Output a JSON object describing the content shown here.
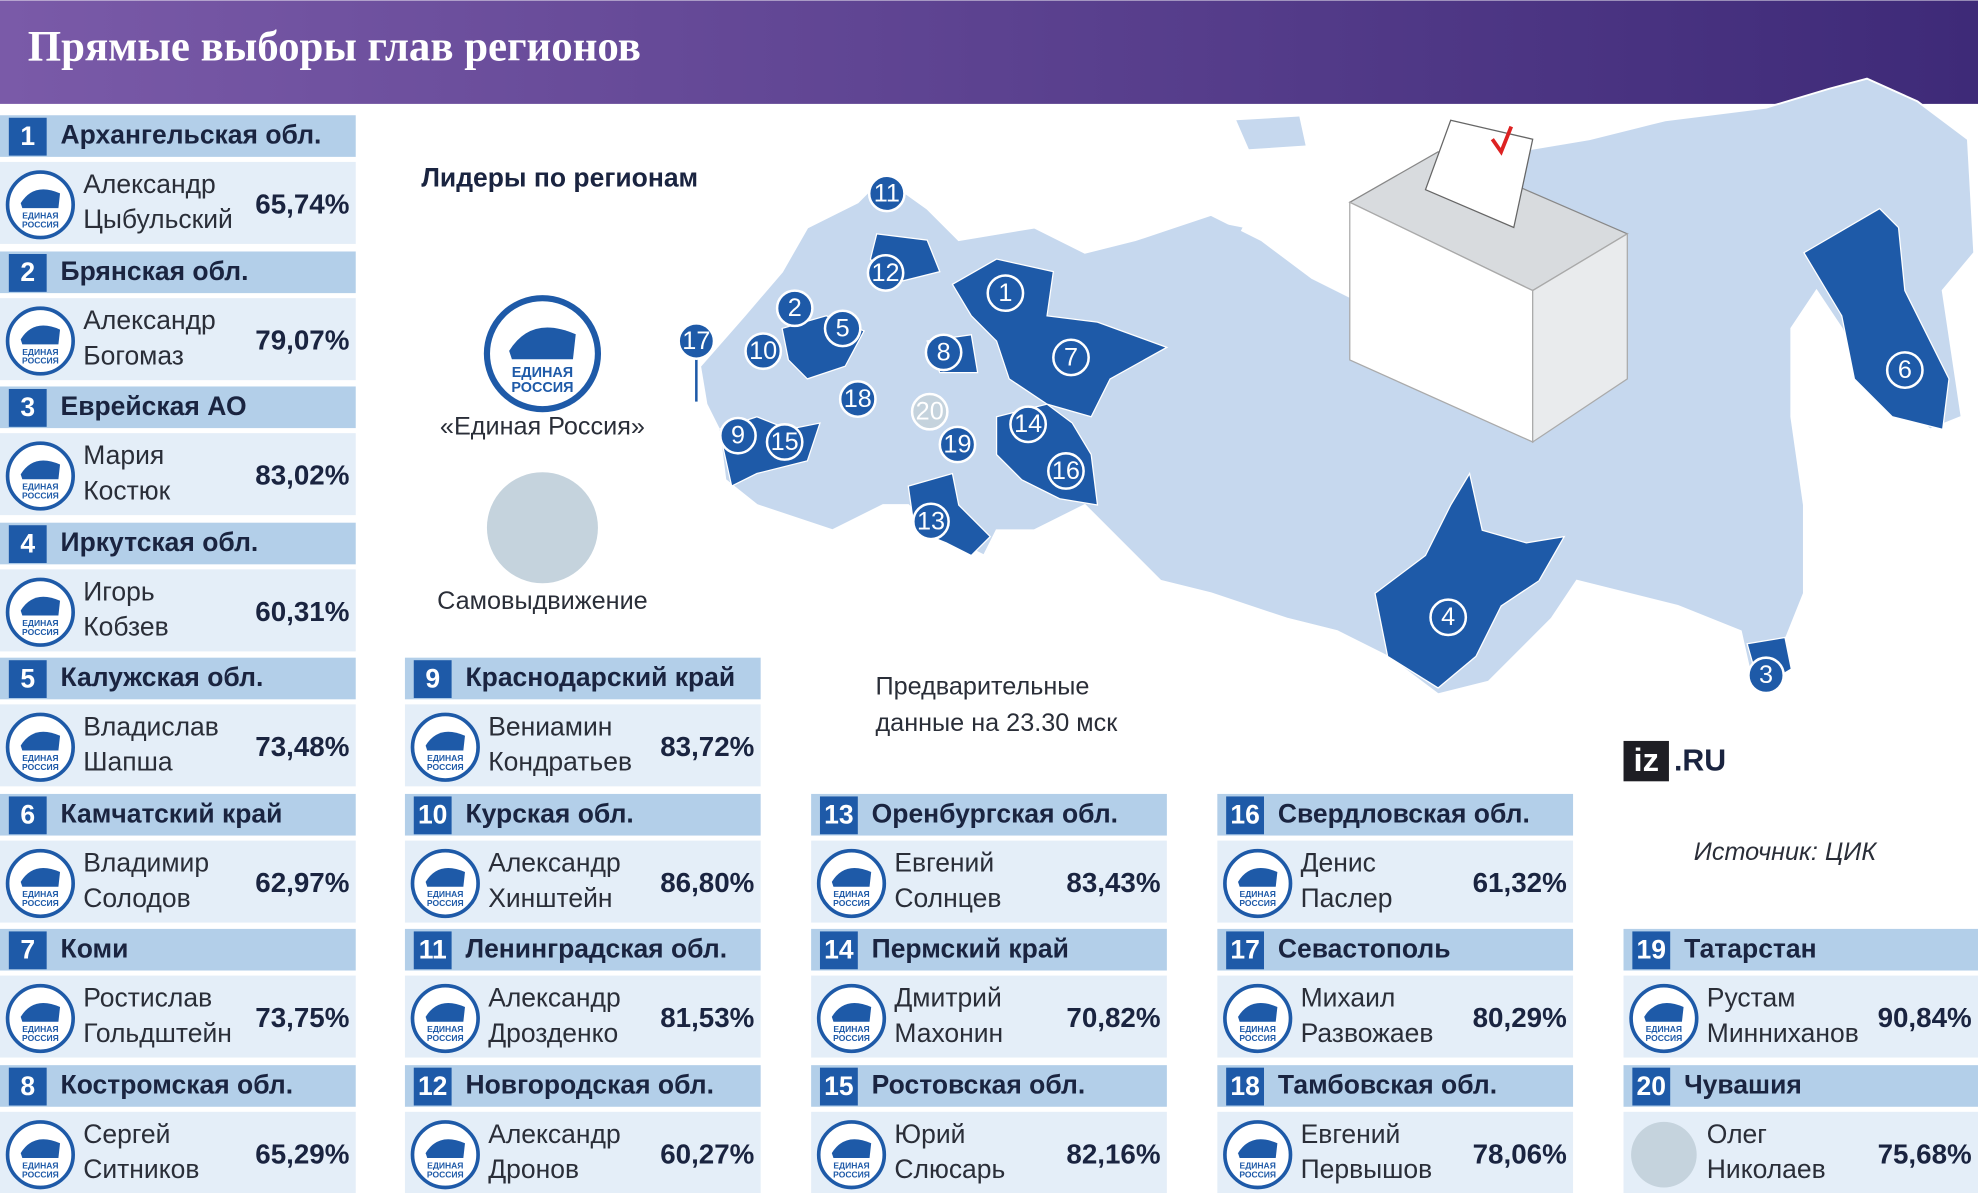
{
  "header": {
    "title": "Прямые выборы глав регионов"
  },
  "map": {
    "title": "Лидеры по регионам",
    "note": [
      "Предварительные",
      "данные на 23.30 мск"
    ]
  },
  "legend": {
    "items": [
      {
        "label": "«Единая Россия»",
        "color": "#1e5aa8",
        "logo_text": [
          "ЕДИНАЯ",
          "РОССИЯ"
        ]
      },
      {
        "label": "Самовыдвижение",
        "color": "#c5d3dd"
      }
    ]
  },
  "brand": {
    "logo": "iz",
    "domain": ".RU"
  },
  "source": "Источник: ЦИК",
  "regions": [
    {
      "number": "1",
      "name": "Архангельская обл.",
      "candidate": [
        "Александр",
        "Цыбульский"
      ],
      "result": "65,74%",
      "color": "#1e5aa8"
    },
    {
      "number": "2",
      "name": "Брянская обл.",
      "candidate": [
        "Александр",
        "Богомаз"
      ],
      "result": "79,07%",
      "color": "#1e5aa8"
    },
    {
      "number": "3",
      "name": "Еврейская АО",
      "candidate": [
        "Мария",
        "Костюк"
      ],
      "result": "83,02%",
      "color": "#1e5aa8"
    },
    {
      "number": "4",
      "name": "Иркутская обл.",
      "candidate": [
        "Игорь",
        "Кобзев"
      ],
      "result": "60,31%",
      "color": "#1e5aa8"
    },
    {
      "number": "5",
      "name": "Калужская обл.",
      "candidate": [
        "Владислав",
        "Шапша"
      ],
      "result": "73,48%",
      "color": "#1e5aa8"
    },
    {
      "number": "6",
      "name": "Камчатский край",
      "candidate": [
        "Владимир",
        "Солодов"
      ],
      "result": "62,97%",
      "color": "#1e5aa8"
    },
    {
      "number": "7",
      "name": "Коми",
      "candidate": [
        "Ростислав",
        "Гольдштейн"
      ],
      "result": "73,75%",
      "color": "#1e5aa8"
    },
    {
      "number": "8",
      "name": "Костромская обл.",
      "candidate": [
        "Сергей",
        "Ситников"
      ],
      "result": "65,29%",
      "color": "#1e5aa8"
    },
    {
      "number": "9",
      "name": "Краснодарский край",
      "candidate": [
        "Вениамин",
        "Кондратьев"
      ],
      "result": "83,72%",
      "color": "#1e5aa8"
    },
    {
      "number": "10",
      "name": "Курская обл.",
      "candidate": [
        "Александр",
        "Хинштейн"
      ],
      "result": "86,80%",
      "color": "#1e5aa8"
    },
    {
      "number": "11",
      "name": "Ленинградская обл.",
      "candidate": [
        "Александр",
        "Дрозденко"
      ],
      "result": "81,53%",
      "color": "#1e5aa8"
    },
    {
      "number": "12",
      "name": "Новгородская обл.",
      "candidate": [
        "Александр",
        "Дронов"
      ],
      "result": "60,27%",
      "color": "#1e5aa8"
    },
    {
      "number": "13",
      "name": "Оренбургская обл.",
      "candidate": [
        "Евгений",
        "Солнцев"
      ],
      "result": "83,43%",
      "color": "#1e5aa8"
    },
    {
      "number": "14",
      "name": "Пермский край",
      "candidate": [
        "Дмитрий",
        "Махонин"
      ],
      "result": "70,82%",
      "color": "#1e5aa8"
    },
    {
      "number": "15",
      "name": "Ростовская обл.",
      "candidate": [
        "Юрий",
        "Слюсарь"
      ],
      "result": "82,16%",
      "color": "#1e5aa8"
    },
    {
      "number": "16",
      "name": "Свердловская обл.",
      "candidate": [
        "Денис",
        "Паслер"
      ],
      "result": "61,32%",
      "color": "#1e5aa8"
    },
    {
      "number": "17",
      "name": "Севастополь",
      "candidate": [
        "Михаил",
        "Развожаев"
      ],
      "result": "80,29%",
      "color": "#1e5aa8"
    },
    {
      "number": "18",
      "name": "Тамбовская обл.",
      "candidate": [
        "Евгений",
        "Первышов"
      ],
      "result": "78,06%",
      "color": "#1e5aa8"
    },
    {
      "number": "19",
      "name": "Татарстан",
      "candidate": [
        "Рустам",
        "Минниханов"
      ],
      "result": "90,84%",
      "color": "#1e5aa8"
    },
    {
      "number": "20",
      "name": "Чувашия",
      "candidate": [
        "Олег",
        "Николаев"
      ],
      "result": "75,68%",
      "color": "#c5d3dd"
    }
  ]
}
